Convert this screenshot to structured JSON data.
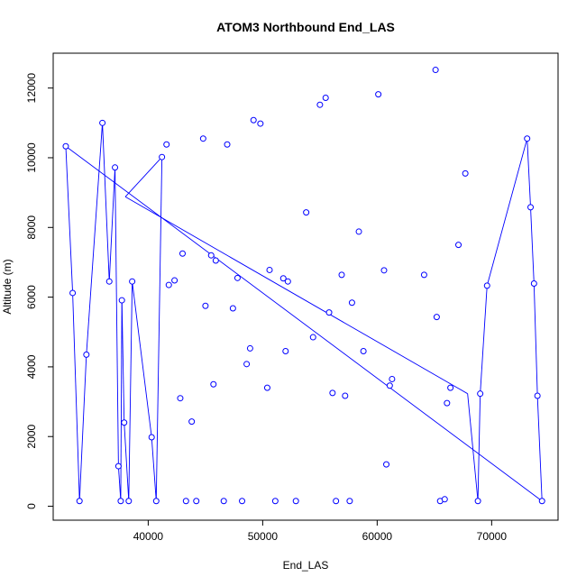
{
  "chart_data": {
    "type": "line",
    "title": "ATOM3 Northbound End_LAS",
    "xlabel": "End_LAS",
    "ylabel": "Altitude (m)",
    "xlim": [
      31700,
      75800
    ],
    "ylim": [
      -400,
      13000
    ],
    "xticks": [
      40000,
      50000,
      60000,
      70000
    ],
    "yticks": [
      0,
      2000,
      4000,
      6000,
      8000,
      10000,
      12000
    ],
    "grid": false,
    "legend": "none",
    "line_color": "#0000ff",
    "point_color": "#0000ff",
    "series": [
      {
        "points": [
          [
            32800,
            10330
          ],
          [
            33400,
            6120
          ],
          [
            34000,
            150
          ],
          [
            34600,
            4350
          ],
          [
            36000,
            11000
          ],
          [
            36600,
            6450
          ],
          [
            37100,
            9720
          ],
          [
            37400,
            1150
          ],
          [
            37600,
            150
          ],
          [
            37700,
            5910
          ],
          [
            37900,
            2400
          ],
          [
            38300,
            150
          ],
          [
            38600,
            6450
          ],
          [
            40300,
            1980
          ],
          [
            40700,
            150
          ],
          [
            41200,
            10020
          ],
          [
            41600,
            10380
          ],
          [
            41800,
            6350
          ],
          [
            42300,
            6480
          ],
          [
            42800,
            3100
          ],
          [
            43000,
            7250
          ],
          [
            43300,
            150
          ],
          [
            43800,
            2430
          ],
          [
            44200,
            150
          ],
          [
            44800,
            10550
          ],
          [
            45000,
            5750
          ],
          [
            45500,
            7200
          ],
          [
            45700,
            3500
          ],
          [
            45900,
            7050
          ],
          [
            46600,
            150
          ],
          [
            46900,
            10380
          ],
          [
            47400,
            5680
          ],
          [
            47800,
            6550
          ],
          [
            48200,
            150
          ],
          [
            48600,
            4080
          ],
          [
            48900,
            4530
          ],
          [
            49200,
            11080
          ],
          [
            49800,
            10980
          ],
          [
            50400,
            3400
          ],
          [
            50600,
            6780
          ],
          [
            51100,
            150
          ],
          [
            51800,
            6540
          ],
          [
            52000,
            4450
          ],
          [
            52200,
            6450
          ],
          [
            52900,
            150
          ],
          [
            53800,
            8430
          ],
          [
            54400,
            4850
          ],
          [
            55000,
            11520
          ],
          [
            55500,
            11720
          ],
          [
            55800,
            5560
          ],
          [
            56100,
            3250
          ],
          [
            56400,
            150
          ],
          [
            56900,
            6640
          ],
          [
            57200,
            3170
          ],
          [
            57600,
            150
          ],
          [
            57800,
            5840
          ],
          [
            58400,
            7880
          ],
          [
            58800,
            4450
          ],
          [
            60100,
            11820
          ],
          [
            60600,
            6770
          ],
          [
            60800,
            1200
          ],
          [
            61100,
            3460
          ],
          [
            61300,
            3650
          ],
          [
            64100,
            6640
          ],
          [
            65100,
            12520
          ],
          [
            65200,
            5430
          ],
          [
            65500,
            150
          ],
          [
            65900,
            200
          ],
          [
            66100,
            2960
          ],
          [
            66400,
            3400
          ],
          [
            67100,
            7500
          ],
          [
            67700,
            9550
          ],
          [
            68800,
            150
          ],
          [
            69000,
            3230
          ],
          [
            69600,
            6330
          ],
          [
            73100,
            10550
          ],
          [
            73400,
            8580
          ],
          [
            73700,
            6390
          ],
          [
            74000,
            3170
          ],
          [
            74400,
            150
          ]
        ],
        "connect_order": [
          [
            32800,
            10330
          ],
          [
            33400,
            6120
          ],
          [
            34000,
            150
          ],
          [
            34600,
            4350
          ],
          [
            36000,
            11000
          ],
          [
            36600,
            6450
          ],
          [
            37100,
            9720
          ],
          [
            37400,
            1150
          ],
          [
            37600,
            150
          ],
          [
            37700,
            5910
          ],
          [
            37900,
            2400
          ],
          [
            38300,
            150
          ],
          [
            38600,
            6450
          ],
          [
            40300,
            1980
          ],
          [
            40700,
            150
          ],
          [
            41200,
            10020
          ],
          [
            38000,
            8880
          ],
          [
            67900,
            3230
          ],
          [
            68800,
            150
          ],
          [
            69000,
            3230
          ],
          [
            69600,
            6330
          ],
          [
            73100,
            10550
          ],
          [
            73400,
            8580
          ],
          [
            73700,
            6390
          ],
          [
            74000,
            3170
          ],
          [
            74400,
            150
          ],
          [
            32800,
            10330
          ]
        ]
      }
    ]
  }
}
